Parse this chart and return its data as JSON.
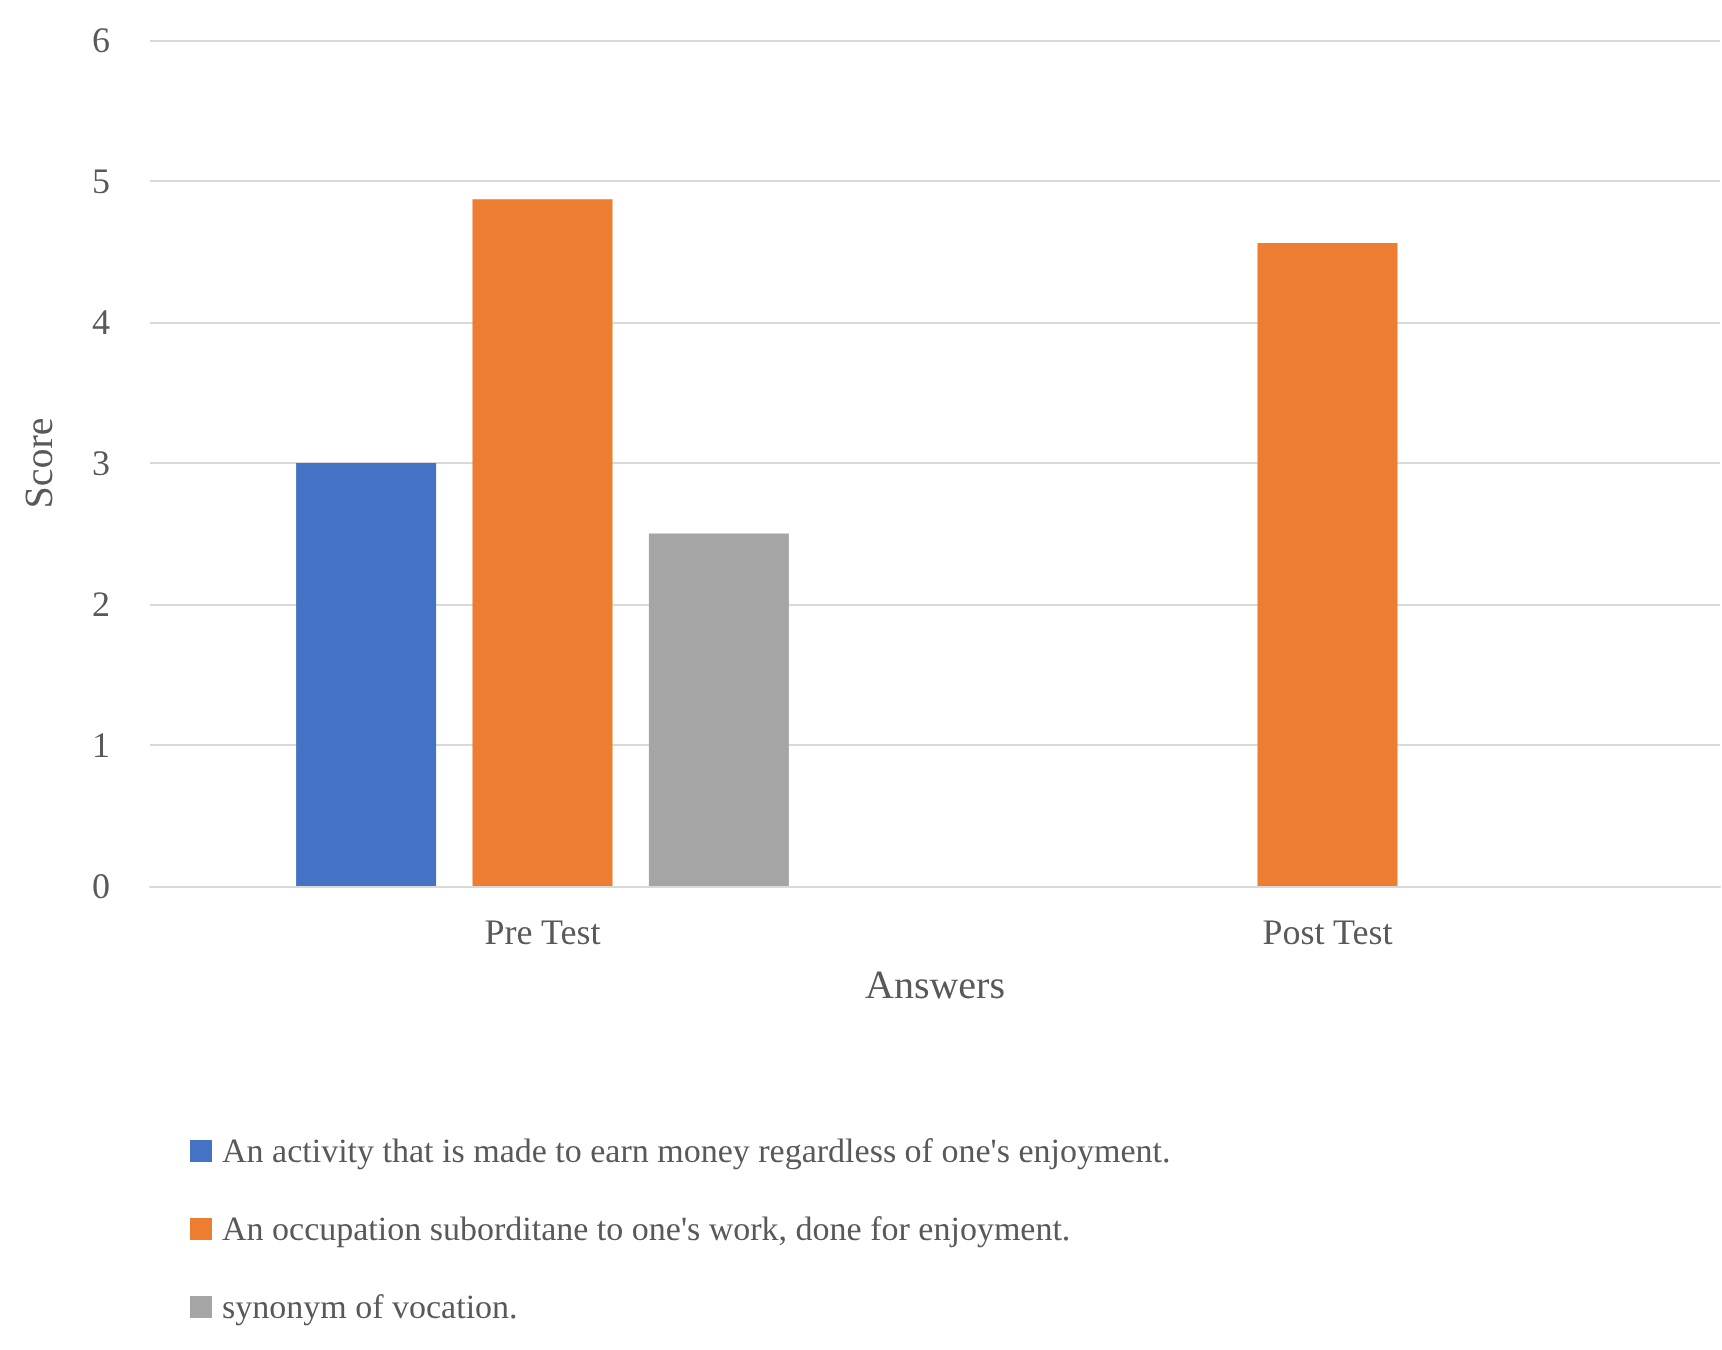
{
  "chart_data": {
    "type": "bar",
    "xlabel": "Answers",
    "ylabel": "Score",
    "categories": [
      "Pre Test",
      "Post Test"
    ],
    "series": [
      {
        "name": "An activity that is made to earn money regardless of one's enjoyment.",
        "color": "#4472c4",
        "values": [
          3.0,
          null
        ]
      },
      {
        "name": "An occupation suborditane to one's work, done for enjoyment.",
        "color": "#ed7d31",
        "values": [
          4.87,
          4.56
        ]
      },
      {
        "name": "synonym of vocation.",
        "color": "#a5a5a5",
        "values": [
          2.5,
          null
        ]
      }
    ],
    "ylim": [
      0,
      6
    ],
    "yticks": [
      0,
      1,
      2,
      3,
      4,
      5,
      6
    ],
    "grid": "y",
    "legend": "bottom"
  }
}
